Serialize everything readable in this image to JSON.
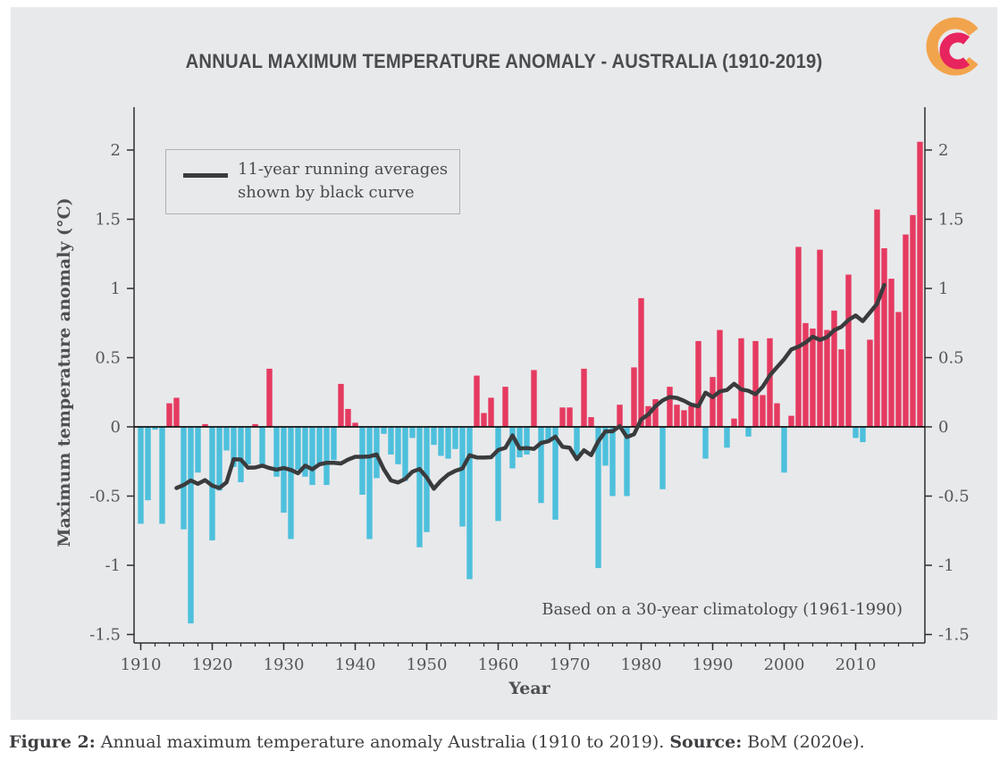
{
  "chart_data": {
    "type": "bar",
    "title": "ANNUAL MAXIMUM TEMPERATURE ANOMALY - AUSTRALIA (1910-2019)",
    "xlabel": "Year",
    "ylabel": "Maximum temperature anomaly (°C)",
    "annotation": "Based on a 30-year climatology (1961-1990)",
    "legend_lines": [
      "11-year running averages",
      "shown by black curve"
    ],
    "year_start": 1910,
    "year_end": 2019,
    "values": [
      -0.7,
      -0.53,
      -0.02,
      -0.7,
      0.17,
      0.21,
      -0.74,
      -1.42,
      -0.33,
      0.02,
      -0.82,
      -0.46,
      -0.17,
      -0.29,
      -0.4,
      -0.27,
      0.02,
      -0.29,
      0.42,
      -0.36,
      -0.62,
      -0.81,
      -0.31,
      -0.36,
      -0.42,
      -0.27,
      -0.42,
      -0.24,
      0.31,
      0.13,
      0.03,
      -0.49,
      -0.81,
      -0.37,
      -0.05,
      -0.2,
      -0.27,
      -0.39,
      -0.08,
      -0.87,
      -0.76,
      -0.13,
      -0.21,
      -0.23,
      -0.16,
      -0.72,
      -1.1,
      0.37,
      0.1,
      0.21,
      -0.68,
      0.29,
      -0.3,
      -0.22,
      -0.2,
      0.41,
      -0.55,
      -0.11,
      -0.67,
      0.14,
      0.14,
      -0.21,
      0.42,
      0.07,
      -1.02,
      -0.28,
      -0.5,
      0.16,
      -0.5,
      0.43,
      0.93,
      0.15,
      0.2,
      -0.45,
      0.29,
      0.16,
      0.12,
      0.15,
      0.62,
      -0.23,
      0.36,
      0.7,
      -0.15,
      0.06,
      0.64,
      -0.07,
      0.62,
      0.23,
      0.64,
      0.17,
      -0.33,
      0.08,
      1.3,
      0.75,
      0.71,
      1.28,
      0.7,
      0.84,
      0.56,
      1.1,
      -0.08,
      -0.11,
      0.63,
      1.57,
      1.29,
      1.07,
      0.83,
      1.39,
      1.53,
      2.06
    ],
    "running_average_window": 11,
    "yticks": [
      2,
      1.5,
      1,
      0.5,
      0,
      -0.5,
      -1,
      -1.5
    ],
    "xticks": [
      1910,
      1920,
      1930,
      1940,
      1950,
      1960,
      1970,
      1980,
      1990,
      2000,
      2010
    ],
    "minor_xtick_interval": 2,
    "ylim": [
      -1.56,
      2.31
    ],
    "grid": false,
    "legend_position": "upper left",
    "colors": {
      "bar_positive": "#E63A60",
      "bar_negative": "#4DC0DC",
      "running_average_curve": "#3A3B3D",
      "zero_line": "#141414",
      "spine": "#2E2E2E",
      "tick_label": "#55565A",
      "panel_background": "#E8E9EB"
    }
  },
  "legend": {
    "line1": "11-year running averages",
    "line2": "shown by black curve"
  },
  "logo": {
    "name": "climate-council-logo",
    "outer_c_color": "#F2A44C",
    "inner_c_color": "#E8245E"
  },
  "caption": {
    "figure_label": "Figure 2:",
    "body": " Annual maximum temperature anomaly Australia (1910 to 2019). ",
    "source_label": "Source:",
    "source_tail": " BoM (2020e)."
  }
}
